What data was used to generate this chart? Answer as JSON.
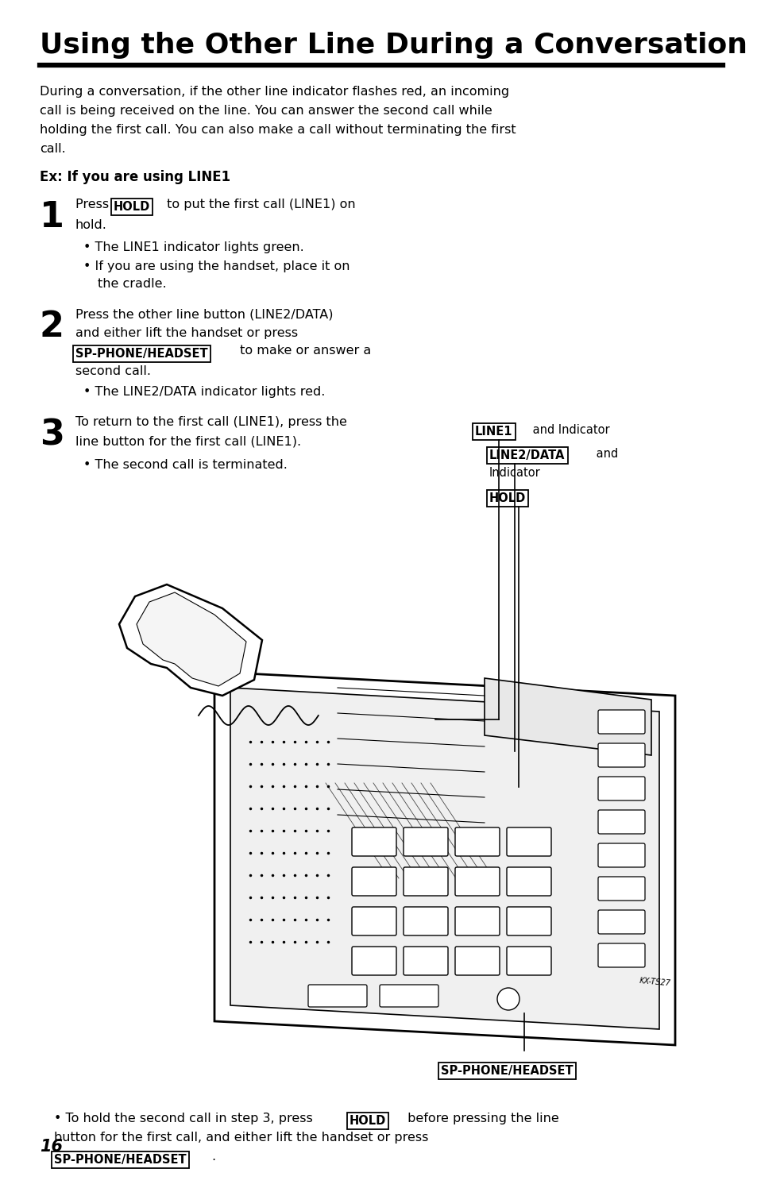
{
  "title": "Using the Other Line During a Conversation",
  "bg_color": "#ffffff",
  "text_color": "#000000",
  "page_number": "16",
  "intro_text_lines": [
    "During a conversation, if the other line indicator flashes red, an incoming",
    "call is being received on the line. You can answer the second call while",
    "holding the first call. You can also make a call without terminating the first",
    "call."
  ],
  "ex_label": "Ex: If you are using LINE1",
  "step1_line1": "Press ",
  "step1_hold": "HOLD",
  "step1_line1b": " to put the first call (LINE1) on",
  "step1_line2": "hold.",
  "step1_bullets": [
    "• The LINE1 indicator lights green.",
    "• If you are using the handset, place it on",
    "   the cradle."
  ],
  "step2_line1": "Press the other line button (LINE2/DATA)",
  "step2_line2": "and either lift the handset or press",
  "step2_sp": "SP-PHONE/HEADSET",
  "step2_line3b": " to make or answer a",
  "step2_line4": "second call.",
  "step2_bullets": [
    "• The LINE2/DATA indicator lights red."
  ],
  "step3_line1": "To return to the first call (LINE1), press the",
  "step3_line2": "line button for the first call (LINE1).",
  "step3_bullets": [
    "• The second call is terminated."
  ],
  "label_line1_box": "LINE1",
  "label_line1_rest": " and Indicator",
  "label_line2_box": "LINE2/DATA",
  "label_line2_rest": " and",
  "label_line2_ind": "Indicator",
  "label_hold_box": "HOLD",
  "label_sp_box": "SP-PHONE/HEADSET",
  "footer_pre": "• To hold the second call in step 3, press ",
  "footer_hold": "HOLD",
  "footer_post": " before pressing the line",
  "footer_line2": "button for the first call, and either lift the handset or press",
  "footer_sp": "SP-PHONE/HEADSET",
  "footer_dot": "."
}
